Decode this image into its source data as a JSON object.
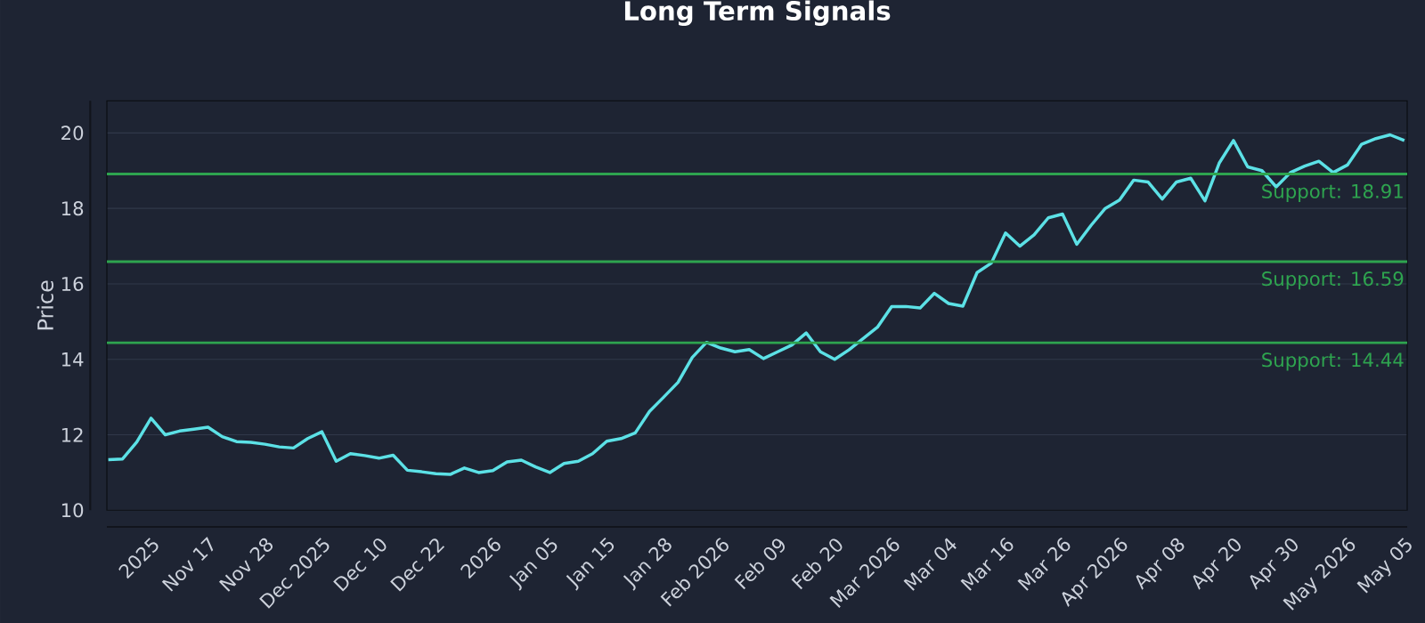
{
  "chart_data": {
    "type": "line",
    "title": "Long Term Signals",
    "ylabel": "Price",
    "categories": [
      null,
      null,
      null,
      "2025",
      null,
      null,
      null,
      "Nov 17",
      null,
      null,
      null,
      "Nov 28",
      null,
      null,
      null,
      "Dec 2025",
      null,
      null,
      null,
      "Dec 10",
      null,
      null,
      null,
      "Dec 22",
      null,
      null,
      null,
      "2026",
      null,
      null,
      null,
      "Jan 05",
      null,
      null,
      null,
      "Jan 15",
      null,
      null,
      null,
      "Jan 28",
      null,
      null,
      null,
      "Feb 2026",
      null,
      null,
      null,
      "Feb 09",
      null,
      null,
      null,
      "Feb 20",
      null,
      null,
      null,
      "Mar 2026",
      null,
      null,
      null,
      "Mar 04",
      null,
      null,
      null,
      "Mar 16",
      null,
      null,
      null,
      "Mar 26",
      null,
      null,
      null,
      "Apr 2026",
      null,
      null,
      null,
      "Apr 08",
      null,
      null,
      null,
      "Apr 20",
      null,
      null,
      null,
      "Apr 30",
      null,
      null,
      null,
      "May 2026",
      null,
      null,
      null,
      "May 05"
    ],
    "series": [
      {
        "color": "#5ce1e6",
        "values": [
          11.34,
          11.36,
          11.81,
          12.44,
          12.0,
          12.1,
          12.15,
          12.2,
          11.95,
          11.82,
          11.8,
          11.75,
          11.68,
          11.65,
          11.9,
          12.08,
          11.3,
          11.5,
          11.45,
          11.38,
          11.46,
          11.06,
          11.02,
          10.97,
          10.95,
          11.12,
          11.0,
          11.05,
          11.28,
          11.33,
          11.15,
          11.0,
          11.24,
          11.3,
          11.5,
          11.83,
          11.9,
          12.05,
          12.62,
          13.0,
          13.39,
          14.05,
          14.45,
          14.3,
          14.2,
          14.26,
          14.02,
          14.2,
          14.38,
          14.7,
          14.2,
          14.0,
          14.25,
          14.55,
          14.85,
          15.4,
          15.4,
          15.36,
          15.75,
          15.48,
          15.41,
          16.3,
          16.55,
          17.35,
          17.0,
          17.3,
          17.75,
          17.85,
          17.05,
          17.55,
          18.0,
          18.22,
          18.75,
          18.7,
          18.25,
          18.7,
          18.8,
          18.2,
          19.2,
          19.8,
          19.1,
          19.0,
          18.57,
          18.95,
          19.12,
          19.25,
          18.95,
          19.15,
          19.7,
          19.85,
          19.95,
          19.8
        ]
      }
    ],
    "ylim": [
      10,
      20.85
    ],
    "yticks": [
      10,
      12,
      14,
      16,
      18,
      20
    ],
    "grid": "y",
    "ref_lines": [
      {
        "axis": "y",
        "value": 18.91,
        "label": "Support: 18.91",
        "color": "#2ea44f"
      },
      {
        "axis": "y",
        "value": 16.59,
        "label": "Support: 16.59",
        "color": "#2ea44f"
      },
      {
        "axis": "y",
        "value": 14.44,
        "label": "Support: 14.44",
        "color": "#2ea44f"
      }
    ]
  }
}
